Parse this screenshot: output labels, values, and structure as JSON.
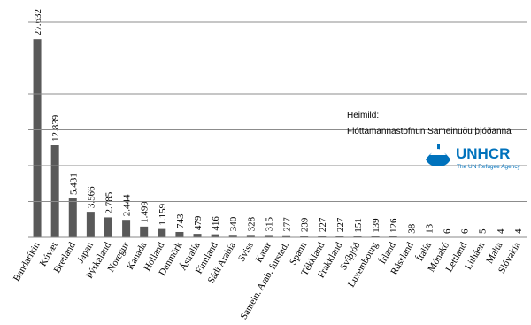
{
  "chart_data": {
    "type": "bar",
    "categories": [
      "Bandaríkin",
      "Kúvæt",
      "Bretland",
      "Japan",
      "Þýskaland",
      "Noregur",
      "Kanada",
      "Holland",
      "Danmörk",
      "Ástralía",
      "Finnland",
      "Sádi Arabía",
      "Sviss",
      "Katar",
      "Samein. Arab. furstad.",
      "Spánn",
      "Tékkland",
      "Frakkland",
      "Svíþjóð",
      "Luxembourg",
      "Írland",
      "Rússland",
      "Ítalía",
      "Mónakó",
      "Lettland",
      "Litháen",
      "Malta",
      "Slóvakía"
    ],
    "values": [
      27632,
      12839,
      5431,
      3566,
      2785,
      2444,
      1499,
      1159,
      743,
      479,
      416,
      340,
      328,
      315,
      277,
      239,
      227,
      227,
      151,
      139,
      126,
      38,
      13,
      6,
      6,
      5,
      4,
      4
    ],
    "value_labels": [
      "27.632",
      "12.839",
      "5.431",
      "3.566",
      "2.785",
      "2.444",
      "1.499",
      "1.159",
      "743",
      "479",
      "416",
      "340",
      "328",
      "315",
      "277",
      "239",
      "227",
      "227",
      "151",
      "139",
      "126",
      "38",
      "13",
      "6",
      "6",
      "5",
      "4",
      "4"
    ],
    "color": "#595959",
    "ylim": [
      0,
      30000
    ],
    "yticks": [
      0,
      5000,
      10000,
      15000,
      20000,
      25000,
      30000
    ],
    "grid": true,
    "annotations": {
      "source_label": "Heimild:",
      "source": "Flóttamannastofnun Sameinuðu þjóðanna",
      "logo": "UNHCR",
      "logo_subtitle": "The UN Refugee Agency"
    }
  }
}
